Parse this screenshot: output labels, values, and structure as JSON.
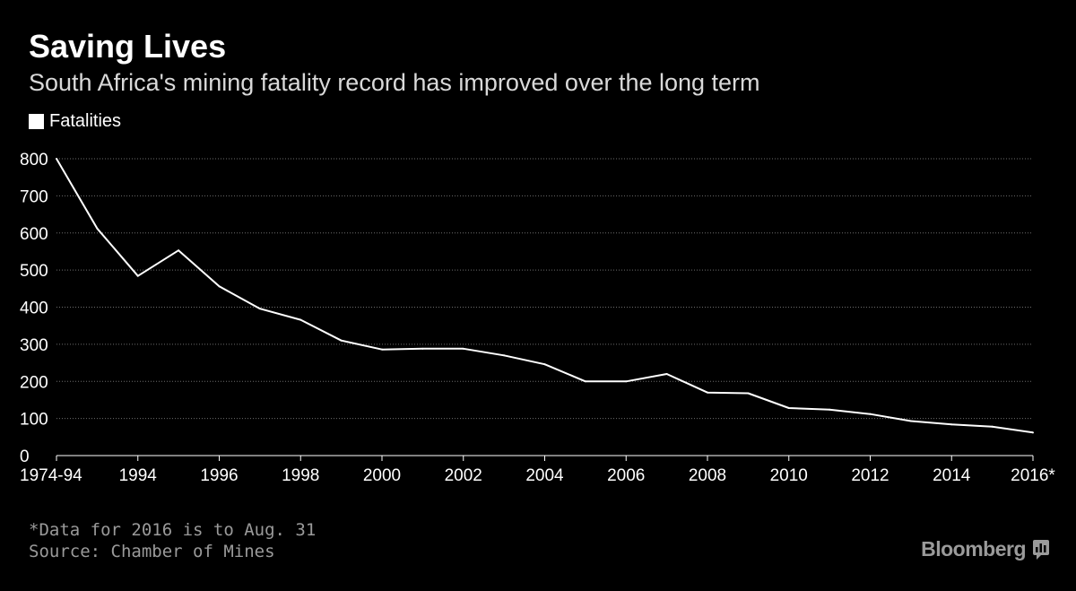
{
  "chart_data": {
    "type": "line",
    "title": "Saving Lives",
    "subtitle": "South Africa's mining fatality record has improved over the long term",
    "xlabel": "",
    "ylabel": "",
    "legend": "top-left",
    "grid": true,
    "ylim": [
      0,
      800
    ],
    "yticks": [
      0,
      100,
      200,
      300,
      400,
      500,
      600,
      700,
      800
    ],
    "x": [
      "1974-94",
      "1993",
      "1994",
      "1995",
      "1996",
      "1997",
      "1998",
      "1999",
      "2000",
      "2001",
      "2002",
      "2003",
      "2004",
      "2005",
      "2006",
      "2007",
      "2008",
      "2009",
      "2010",
      "2011",
      "2012",
      "2013",
      "2014",
      "2015",
      "2016*"
    ],
    "xtick_labels": [
      "1974-94",
      "1994",
      "1996",
      "1998",
      "2000",
      "2002",
      "2004",
      "2006",
      "2008",
      "2010",
      "2012",
      "2014",
      "2016*"
    ],
    "series": [
      {
        "name": "Fatalities",
        "color": "#ffffff",
        "values": [
          800,
          612,
          484,
          553,
          456,
          396,
          366,
          310,
          286,
          288,
          288,
          270,
          246,
          200,
          200,
          220,
          170,
          168,
          128,
          124,
          112,
          93,
          84,
          78,
          62
        ]
      }
    ]
  },
  "footnote": "*Data for 2016 is to Aug. 31",
  "source": "Source: Chamber of Mines",
  "brand": {
    "name": "Bloomberg",
    "icon": "bloomberg-chart-icon"
  },
  "colors": {
    "background": "#000000",
    "line": "#ffffff",
    "grid": "#6e6e6e",
    "muted_text": "#9a9a9a"
  }
}
